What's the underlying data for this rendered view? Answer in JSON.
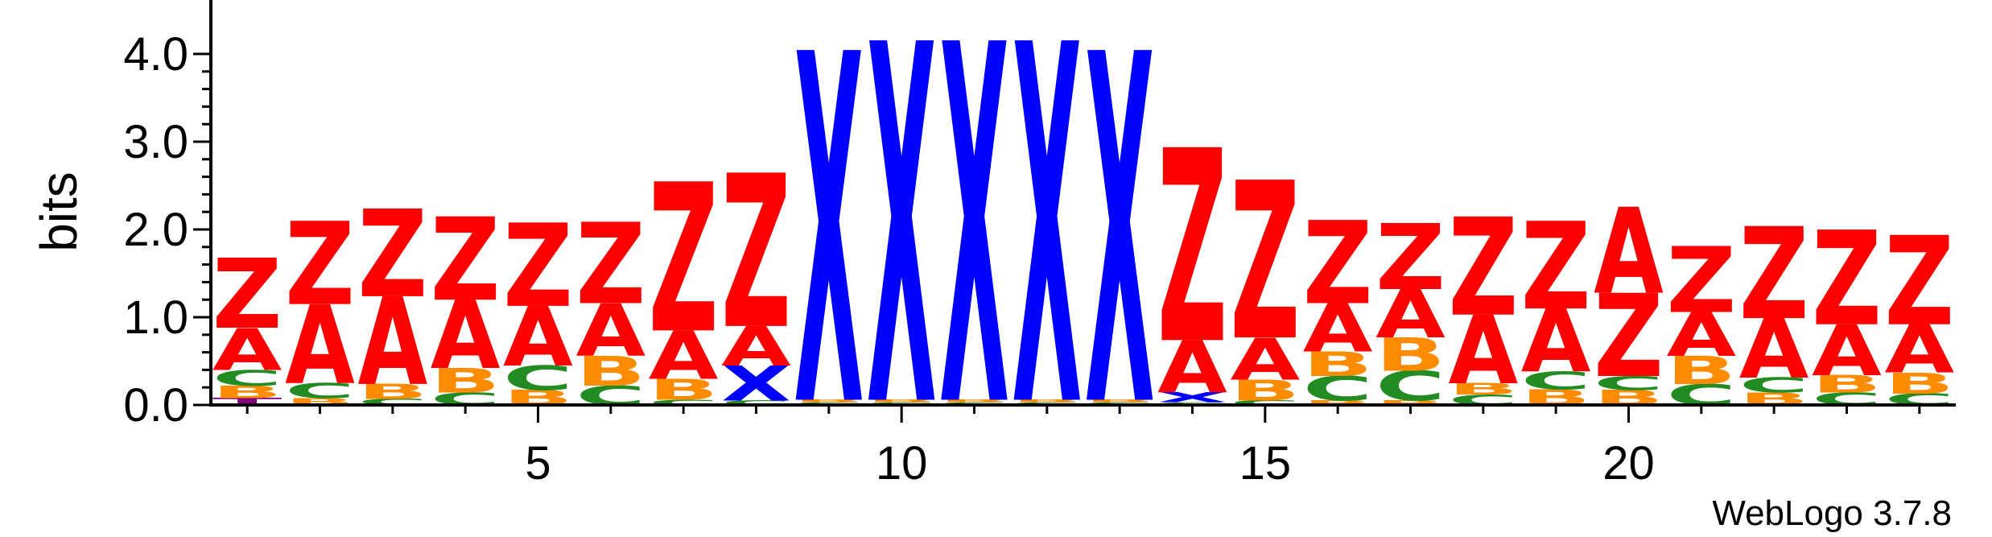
{
  "chart_data": {
    "type": "sequence-logo",
    "ylabel": "bits",
    "ylim": [
      0,
      4.0
    ],
    "yticks": [
      "0.0",
      "1.0",
      "2.0",
      "3.0",
      "4.0"
    ],
    "xlim": [
      0.5,
      24.5
    ],
    "xticks": [
      5,
      10,
      15,
      20
    ],
    "credit": "WebLogo 3.7.8",
    "colors": {
      "Z": "#ff0000",
      "A": "#ff0000",
      "X": "#0000ff",
      "B": "#ff8c00",
      "C": "#228b22",
      "T": "#800080"
    },
    "positions": [
      {
        "pos": 1,
        "stack": [
          [
            "T",
            0.08
          ],
          [
            "B",
            0.14
          ],
          [
            "C",
            0.18
          ],
          [
            "A",
            0.48
          ],
          [
            "Z",
            0.8
          ]
        ]
      },
      {
        "pos": 2,
        "stack": [
          [
            "B",
            0.08
          ],
          [
            "C",
            0.17
          ],
          [
            "A",
            0.9
          ],
          [
            "Z",
            0.95
          ]
        ]
      },
      {
        "pos": 3,
        "stack": [
          [
            "C",
            0.07
          ],
          [
            "B",
            0.17
          ],
          [
            "A",
            1.0
          ],
          [
            "Z",
            1.0
          ]
        ]
      },
      {
        "pos": 4,
        "stack": [
          [
            "C",
            0.14
          ],
          [
            "B",
            0.28
          ],
          [
            "A",
            0.78
          ],
          [
            "Z",
            0.95
          ]
        ]
      },
      {
        "pos": 5,
        "stack": [
          [
            "B",
            0.17
          ],
          [
            "C",
            0.28
          ],
          [
            "A",
            0.68
          ],
          [
            "Z",
            0.95
          ]
        ]
      },
      {
        "pos": 6,
        "stack": [
          [
            "C",
            0.22
          ],
          [
            "B",
            0.34
          ],
          [
            "A",
            0.6
          ],
          [
            "Z",
            0.93
          ]
        ]
      },
      {
        "pos": 7,
        "stack": [
          [
            "C",
            0.06
          ],
          [
            "B",
            0.24
          ],
          [
            "A",
            0.55
          ],
          [
            "Z",
            1.7
          ]
        ]
      },
      {
        "pos": 8,
        "stack": [
          [
            "C",
            0.05
          ],
          [
            "X",
            0.4
          ],
          [
            "A",
            0.45
          ],
          [
            "Z",
            1.75
          ]
        ]
      },
      {
        "pos": 9,
        "stack": [
          [
            "C",
            0.03
          ],
          [
            "B",
            0.03
          ],
          [
            "X",
            3.99
          ]
        ]
      },
      {
        "pos": 10,
        "stack": [
          [
            "C",
            0.03
          ],
          [
            "B",
            0.03
          ],
          [
            "X",
            4.1
          ]
        ]
      },
      {
        "pos": 11,
        "stack": [
          [
            "C",
            0.03
          ],
          [
            "B",
            0.03
          ],
          [
            "X",
            4.1
          ]
        ]
      },
      {
        "pos": 12,
        "stack": [
          [
            "C",
            0.03
          ],
          [
            "B",
            0.03
          ],
          [
            "X",
            4.1
          ]
        ]
      },
      {
        "pos": 13,
        "stack": [
          [
            "C",
            0.03
          ],
          [
            "B",
            0.03
          ],
          [
            "X",
            3.99
          ]
        ]
      },
      {
        "pos": 14,
        "stack": [
          [
            "C",
            0.03
          ],
          [
            "X",
            0.11
          ],
          [
            "A",
            0.6
          ],
          [
            "Z",
            2.2
          ]
        ]
      },
      {
        "pos": 15,
        "stack": [
          [
            "C",
            0.05
          ],
          [
            "B",
            0.24
          ],
          [
            "A",
            0.48
          ],
          [
            "Z",
            1.8
          ]
        ]
      },
      {
        "pos": 16,
        "stack": [
          [
            "B",
            0.05
          ],
          [
            "C",
            0.28
          ],
          [
            "B",
            0.28
          ],
          [
            "A",
            0.55
          ],
          [
            "Z",
            0.95
          ]
        ]
      },
      {
        "pos": 17,
        "stack": [
          [
            "B",
            0.05
          ],
          [
            "C",
            0.34
          ],
          [
            "B",
            0.38
          ],
          [
            "A",
            0.55
          ],
          [
            "Z",
            0.75
          ]
        ]
      },
      {
        "pos": 18,
        "stack": [
          [
            "C",
            0.12
          ],
          [
            "B",
            0.13
          ],
          [
            "A",
            0.78
          ],
          [
            "Z",
            1.12
          ]
        ]
      },
      {
        "pos": 19,
        "stack": [
          [
            "B",
            0.18
          ],
          [
            "C",
            0.2
          ],
          [
            "A",
            0.72
          ],
          [
            "Z",
            1.0
          ]
        ]
      },
      {
        "pos": 20,
        "stack": [
          [
            "B",
            0.17
          ],
          [
            "C",
            0.16
          ],
          [
            "Z",
            0.95
          ],
          [
            "A",
            0.98
          ]
        ]
      },
      {
        "pos": 21,
        "stack": [
          [
            "C",
            0.24
          ],
          [
            "B",
            0.32
          ],
          [
            "A",
            0.5
          ],
          [
            "Z",
            0.75
          ]
        ]
      },
      {
        "pos": 22,
        "stack": [
          [
            "B",
            0.14
          ],
          [
            "C",
            0.17
          ],
          [
            "A",
            0.68
          ],
          [
            "Z",
            1.05
          ]
        ]
      },
      {
        "pos": 23,
        "stack": [
          [
            "C",
            0.14
          ],
          [
            "B",
            0.2
          ],
          [
            "A",
            0.58
          ],
          [
            "Z",
            1.08
          ]
        ]
      },
      {
        "pos": 24,
        "stack": [
          [
            "C",
            0.13
          ],
          [
            "B",
            0.24
          ],
          [
            "A",
            0.55
          ],
          [
            "Z",
            1.02
          ]
        ]
      }
    ]
  }
}
